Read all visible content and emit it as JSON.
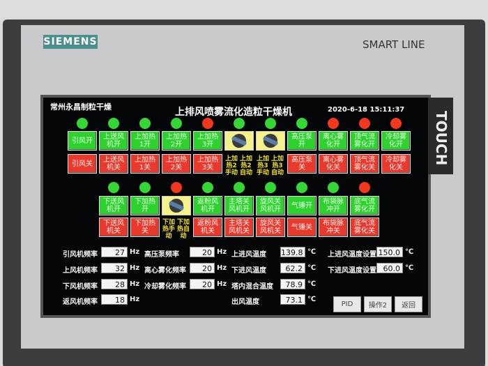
{
  "bezel": {
    "brand": "SIEMENS",
    "series": "SMART LINE",
    "touch": "TOUCH"
  },
  "header": {
    "company": "常州永昌制粒干燥",
    "title": "上排风喷雾流化造粒干燥机",
    "datetime": "2020-6-18 15:11:37"
  },
  "row1": {
    "lights": [
      "green",
      "green",
      "green",
      "green",
      "red",
      "green",
      "green",
      "green",
      "red",
      "red",
      "red"
    ],
    "on": [
      "引风开",
      "上送风机开",
      "上加热1开",
      "上加热2开",
      "上加热3开",
      null,
      null,
      "高压泵开",
      "离心雾化开",
      "顶气流雾化开",
      "冷却雾化开"
    ],
    "off": [
      "引风关",
      "上送风机关",
      "上加热1关",
      "上加热2关",
      "上加热3关",
      [
        "上加热2手动",
        "上加热2自动"
      ],
      [
        "上加热3手动",
        "上加热3自动"
      ],
      "高压泵关",
      "离心雾化关",
      "顶气流雾化关",
      "冷却雾化关"
    ]
  },
  "row2": {
    "lights": [
      "green",
      "green",
      "red",
      "green",
      "green",
      "green",
      "green",
      "green",
      "red"
    ],
    "on": [
      "下送风机开",
      "下加热开",
      null,
      "返粉风机开",
      "主塔关风机开",
      "旋风关风机开",
      "气锤开",
      "布袋脉冲开",
      "底气流雾化开"
    ],
    "off": [
      "下送风机关",
      "下加热关",
      [
        "下加热手动",
        "下加热自动"
      ],
      "返粉风机关",
      "主塔关风机关",
      "旋风关风机关",
      "气锤关",
      "布袋脉冲关",
      "底气流雾化关"
    ]
  },
  "params": [
    [
      {
        "label": "引风机频率",
        "value": "27",
        "unit": "Hz"
      },
      {
        "label": "上风机频率",
        "value": "32",
        "unit": "Hz"
      },
      {
        "label": "下风机频率",
        "value": "28",
        "unit": "Hz"
      },
      {
        "label": "返风机频率",
        "value": "18",
        "unit": "Hz"
      }
    ],
    [
      {
        "label": "高压泵频率",
        "value": "20",
        "unit": "Hz"
      },
      {
        "label": "离心雾化频率",
        "value": "20",
        "unit": "Hz"
      },
      {
        "label": "冷却雾化频率",
        "value": "20",
        "unit": "Hz"
      }
    ],
    [
      {
        "label": "上进风温度",
        "value": "139.8",
        "unit": "℃"
      },
      {
        "label": "下进风温度",
        "value": "62.2",
        "unit": "℃"
      },
      {
        "label": "塔内混合温度",
        "value": "78.9",
        "unit": "℃"
      },
      {
        "label": "出风温度",
        "value": "73.1",
        "unit": "℃"
      }
    ],
    [
      {
        "label": "上进风温度设置",
        "value": "150.0",
        "unit": "℃"
      },
      {
        "label": "下进风温度设置",
        "value": "60.0",
        "unit": "℃"
      }
    ]
  ],
  "buttons": [
    "PID",
    "操作2",
    "返回"
  ]
}
